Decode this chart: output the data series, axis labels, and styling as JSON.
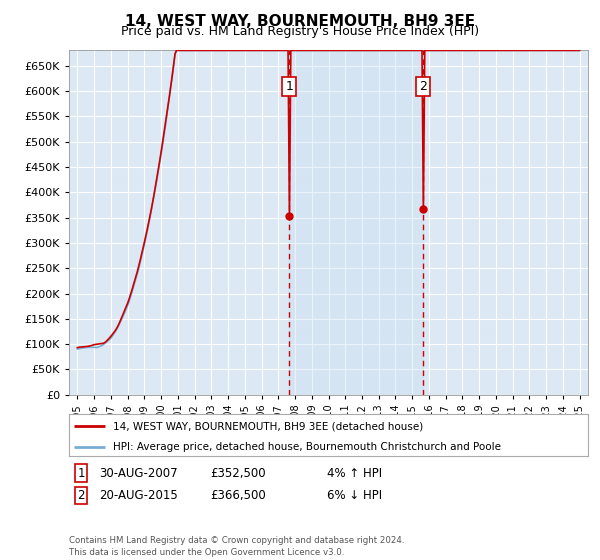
{
  "title": "14, WEST WAY, BOURNEMOUTH, BH9 3EE",
  "subtitle": "Price paid vs. HM Land Registry's House Price Index (HPI)",
  "legend_line1": "14, WEST WAY, BOURNEMOUTH, BH9 3EE (detached house)",
  "legend_line2": "HPI: Average price, detached house, Bournemouth Christchurch and Poole",
  "sale1_label": "1",
  "sale1_date": "30-AUG-2007",
  "sale1_price": "£352,500",
  "sale1_hpi": "4% ↑ HPI",
  "sale1_year": 2007.66,
  "sale1_value": 352500,
  "sale2_label": "2",
  "sale2_date": "20-AUG-2015",
  "sale2_price": "£366,500",
  "sale2_hpi": "6% ↓ HPI",
  "sale2_year": 2015.64,
  "sale2_value": 366500,
  "footer": "Contains HM Land Registry data © Crown copyright and database right 2024.\nThis data is licensed under the Open Government Licence v3.0.",
  "ylim": [
    0,
    680000
  ],
  "yticks": [
    0,
    50000,
    100000,
    150000,
    200000,
    250000,
    300000,
    350000,
    400000,
    450000,
    500000,
    550000,
    600000,
    650000
  ],
  "xlim_start": 1994.5,
  "xlim_end": 2025.5,
  "background_color": "#ffffff",
  "plot_bg_color": "#dce9f5",
  "grid_color": "#ffffff",
  "red_line_color": "#cc0000",
  "blue_line_color": "#7aadd4",
  "vline_color": "#cc0000",
  "box_color": "#ffffff",
  "box_edge_color": "#cc0000",
  "shade_color": "#c8dcf0",
  "dot_color": "#cc0000"
}
